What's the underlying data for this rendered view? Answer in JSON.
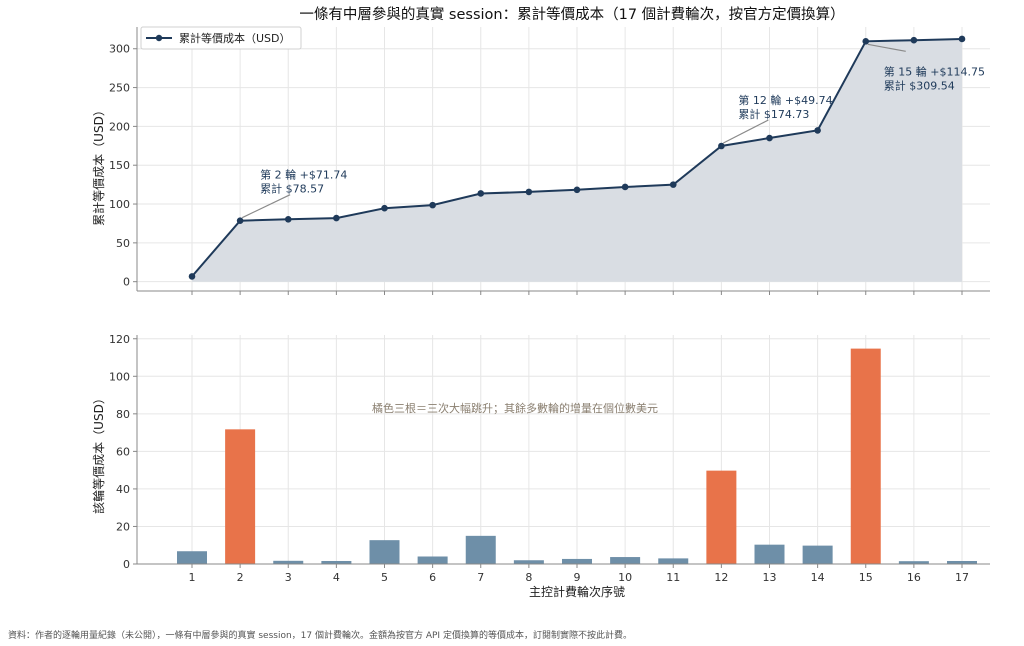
{
  "figure_title": "一條有中層參與的真實 session：累計等價成本（17 個計費輪次，按官方定價換算）",
  "source_note": "資料：作者的逐輪用量紀錄（未公開），一條有中層參與的真實 session，17 個計費輪次。金額為按官方 API 定價換算的等價成本，訂閱制實際不按此計費。",
  "colors": {
    "line": "#1f3a5a",
    "area": "#d9dde3",
    "bar_normal": "#6e8fa8",
    "bar_highlight": "#e8734a",
    "annotation_arrow": "#8a8a8a",
    "note_text": "#8a7f70",
    "grid": "#e6e6e6"
  },
  "chart_data": [
    {
      "type": "line",
      "title": "一條有中層參與的真實 session：累計等價成本（17 個計費輪次，按官方定價換算）",
      "ylabel": "累計等價成本（USD）",
      "xlabel": "",
      "x": [
        1,
        2,
        3,
        4,
        5,
        6,
        7,
        8,
        9,
        10,
        11,
        12,
        13,
        14,
        15,
        16,
        17
      ],
      "series": [
        {
          "name": "累計等價成本（USD）",
          "values": [
            6.8,
            78.57,
            80.3,
            81.9,
            94.6,
            98.6,
            113.6,
            115.6,
            118.3,
            122.0,
            124.99,
            174.73,
            185.0,
            194.79,
            309.54,
            311.0,
            312.6
          ]
        }
      ],
      "ylim": [
        -12,
        328
      ],
      "yticks": [
        0,
        50,
        100,
        150,
        200,
        250,
        300
      ],
      "area_fill": true,
      "grid": true,
      "legend_position": "top-left",
      "annotations": [
        {
          "x": 2,
          "y": 78.57,
          "lines": [
            "第 2 輪 +$71.74",
            "累計 $78.57"
          ]
        },
        {
          "x": 12,
          "y": 174.73,
          "lines": [
            "第 12 輪 +$49.74",
            "累計 $174.73"
          ]
        },
        {
          "x": 15,
          "y": 309.54,
          "lines": [
            "第 15 輪 +$114.75",
            "累計 $309.54"
          ]
        }
      ]
    },
    {
      "type": "bar",
      "ylabel": "該輪等價成本（USD）",
      "xlabel": "主控計費輪次序號",
      "categories": [
        "1",
        "2",
        "3",
        "4",
        "5",
        "6",
        "7",
        "8",
        "9",
        "10",
        "11",
        "12",
        "13",
        "14",
        "15",
        "16",
        "17"
      ],
      "values": [
        6.8,
        71.74,
        1.7,
        1.6,
        12.7,
        4.0,
        15.0,
        2.0,
        2.7,
        3.7,
        2.99,
        49.74,
        10.3,
        9.79,
        114.75,
        1.5,
        1.6
      ],
      "highlight_indices": [
        1,
        11,
        14
      ],
      "ylim": [
        0,
        122
      ],
      "yticks": [
        0,
        20,
        40,
        60,
        80,
        100,
        120
      ],
      "grid": true,
      "note": "橘色三根＝三次大幅跳升；其餘多數輪的增量在個位數美元"
    }
  ]
}
